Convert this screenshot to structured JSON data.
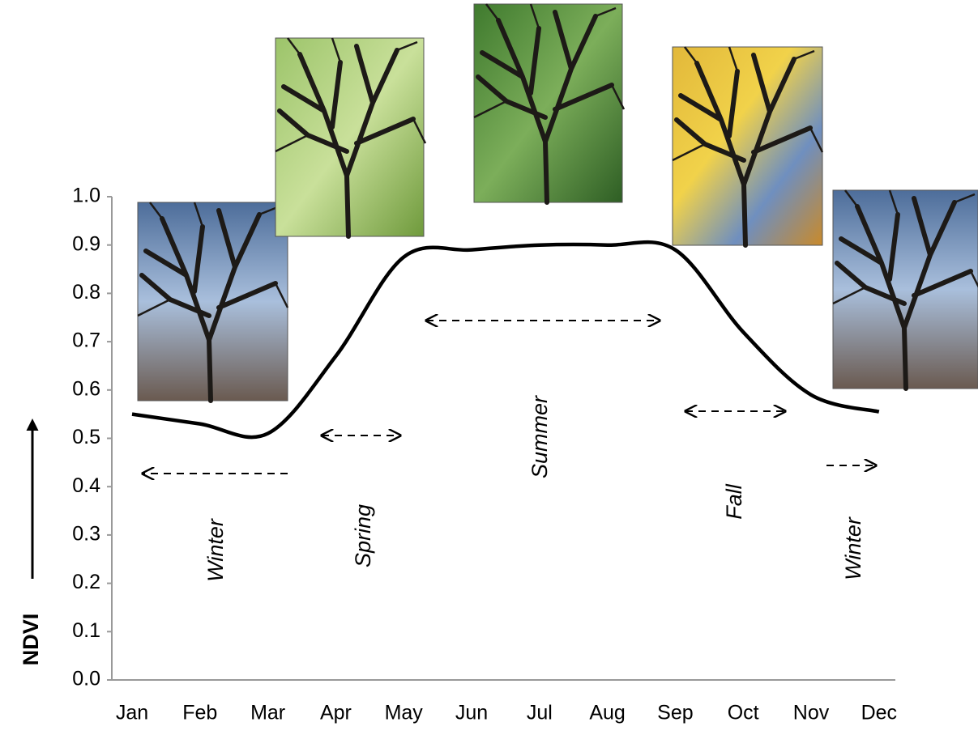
{
  "chart_data": {
    "type": "line",
    "y_label": "NDVI",
    "categories": [
      "Jan",
      "Feb",
      "Mar",
      "Apr",
      "May",
      "Jun",
      "Jul",
      "Aug",
      "Sep",
      "Oct",
      "Nov",
      "Dec"
    ],
    "values": [
      0.55,
      0.53,
      0.51,
      0.67,
      0.875,
      0.89,
      0.9,
      0.9,
      0.89,
      0.72,
      0.59,
      0.555
    ],
    "color": "#000000",
    "ylim": [
      0,
      1
    ],
    "yticks": [
      {
        "value": 0,
        "label": "0.0"
      },
      0.1,
      0.2,
      0.3,
      0.4,
      0.5,
      0.6,
      0.7,
      0.8,
      0.9,
      {
        "value": 1,
        "label": "1.0"
      }
    ],
    "annotations": [
      "Winter",
      "Spring",
      "Summer",
      "Fall",
      "Winter"
    ]
  }
}
